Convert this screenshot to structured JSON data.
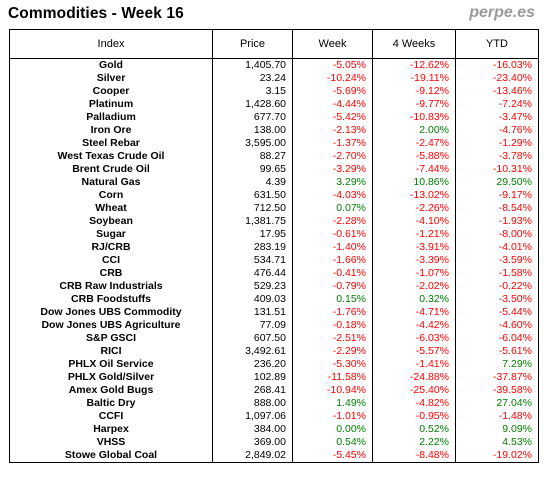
{
  "header": {
    "title": "Commodities - Week 16",
    "brand": "perpe.es"
  },
  "colors": {
    "negative": "#ff0000",
    "positive": "#008000",
    "text": "#000000",
    "brand": "#9a9a9a"
  },
  "chart_data": {
    "type": "table",
    "columns": [
      "Index",
      "Price",
      "Week",
      "4 Weeks",
      "YTD"
    ],
    "rows": [
      {
        "index": "Gold",
        "price": "1,405.70",
        "week": "-5.05%",
        "w4": "-12.62%",
        "ytd": "-16.03%"
      },
      {
        "index": "Silver",
        "price": "23.24",
        "week": "-10.24%",
        "w4": "-19.11%",
        "ytd": "-23.40%"
      },
      {
        "index": "Cooper",
        "price": "3.15",
        "week": "-5.69%",
        "w4": "-9.12%",
        "ytd": "-13.46%"
      },
      {
        "index": "Platinum",
        "price": "1,428.60",
        "week": "-4.44%",
        "w4": "-9.77%",
        "ytd": "-7.24%"
      },
      {
        "index": "Palladium",
        "price": "677.70",
        "week": "-5.42%",
        "w4": "-10.83%",
        "ytd": "-3.47%"
      },
      {
        "index": "Iron Ore",
        "price": "138.00",
        "week": "-2.13%",
        "w4": "2.00%",
        "ytd": "-4.76%"
      },
      {
        "index": "Steel Rebar",
        "price": "3,595.00",
        "week": "-1.37%",
        "w4": "-2.47%",
        "ytd": "-1.29%"
      },
      {
        "index": "West Texas Crude Oil",
        "price": "88.27",
        "week": "-2.70%",
        "w4": "-5.88%",
        "ytd": "-3.78%"
      },
      {
        "index": "Brent Crude Oil",
        "price": "99.65",
        "week": "-3.29%",
        "w4": "-7.44%",
        "ytd": "-10.31%"
      },
      {
        "index": "Natural Gas",
        "price": "4.39",
        "week": "3.29%",
        "w4": "10.86%",
        "ytd": "29.50%"
      },
      {
        "index": "Corn",
        "price": "631.50",
        "week": "-4.03%",
        "w4": "-13.02%",
        "ytd": "-9.17%"
      },
      {
        "index": "Wheat",
        "price": "712.50",
        "week": "0.07%",
        "w4": "-2.26%",
        "ytd": "-8.54%"
      },
      {
        "index": "Soybean",
        "price": "1,381.75",
        "week": "-2.28%",
        "w4": "-4.10%",
        "ytd": "-1.93%"
      },
      {
        "index": "Sugar",
        "price": "17.95",
        "week": "-0.61%",
        "w4": "-1.21%",
        "ytd": "-8.00%"
      },
      {
        "index": "RJ/CRB",
        "price": "283.19",
        "week": "-1.40%",
        "w4": "-3.91%",
        "ytd": "-4.01%"
      },
      {
        "index": "CCI",
        "price": "534.71",
        "week": "-1.66%",
        "w4": "-3.39%",
        "ytd": "-3.59%"
      },
      {
        "index": "CRB",
        "price": "476.44",
        "week": "-0.41%",
        "w4": "-1.07%",
        "ytd": "-1.58%"
      },
      {
        "index": "CRB Raw Industrials",
        "price": "529.23",
        "week": "-0.79%",
        "w4": "-2.02%",
        "ytd": "-0.22%"
      },
      {
        "index": "CRB Foodstuffs",
        "price": "409.03",
        "week": "0.15%",
        "w4": "0.32%",
        "ytd": "-3.50%"
      },
      {
        "index": "Dow Jones UBS Commodity",
        "price": "131.51",
        "week": "-1.76%",
        "w4": "-4.71%",
        "ytd": "-5.44%"
      },
      {
        "index": "Dow Jones UBS Agriculture",
        "price": "77.09",
        "week": "-0.18%",
        "w4": "-4.42%",
        "ytd": "-4.60%"
      },
      {
        "index": "S&P GSCI",
        "price": "607.50",
        "week": "-2.51%",
        "w4": "-6.03%",
        "ytd": "-6.04%"
      },
      {
        "index": "RICI",
        "price": "3,492.61",
        "week": "-2.29%",
        "w4": "-5.57%",
        "ytd": "-5.61%"
      },
      {
        "index": "PHLX Oil Service",
        "price": "236.20",
        "week": "-5.30%",
        "w4": "-1.41%",
        "ytd": "7.29%"
      },
      {
        "index": "PHLX Gold/Silver",
        "price": "102.89",
        "week": "-11.58%",
        "w4": "-24.88%",
        "ytd": "-37.87%"
      },
      {
        "index": "Amex Gold Bugs",
        "price": "268.41",
        "week": "-10.94%",
        "w4": "-25.40%",
        "ytd": "-39.58%"
      },
      {
        "index": "Baltic Dry",
        "price": "888.00",
        "week": "1.49%",
        "w4": "-4.82%",
        "ytd": "27.04%"
      },
      {
        "index": "CCFI",
        "price": "1,097.06",
        "week": "-1.01%",
        "w4": "-0.95%",
        "ytd": "-1.48%"
      },
      {
        "index": "Harpex",
        "price": "384.00",
        "week": "0.00%",
        "w4": "0.52%",
        "ytd": "9.09%"
      },
      {
        "index": "VHSS",
        "price": "369.00",
        "week": "0.54%",
        "w4": "2.22%",
        "ytd": "4.53%"
      },
      {
        "index": "Stowe Global Coal",
        "price": "2,849.02",
        "week": "-5.45%",
        "w4": "-8.48%",
        "ytd": "-19.02%"
      }
    ]
  }
}
